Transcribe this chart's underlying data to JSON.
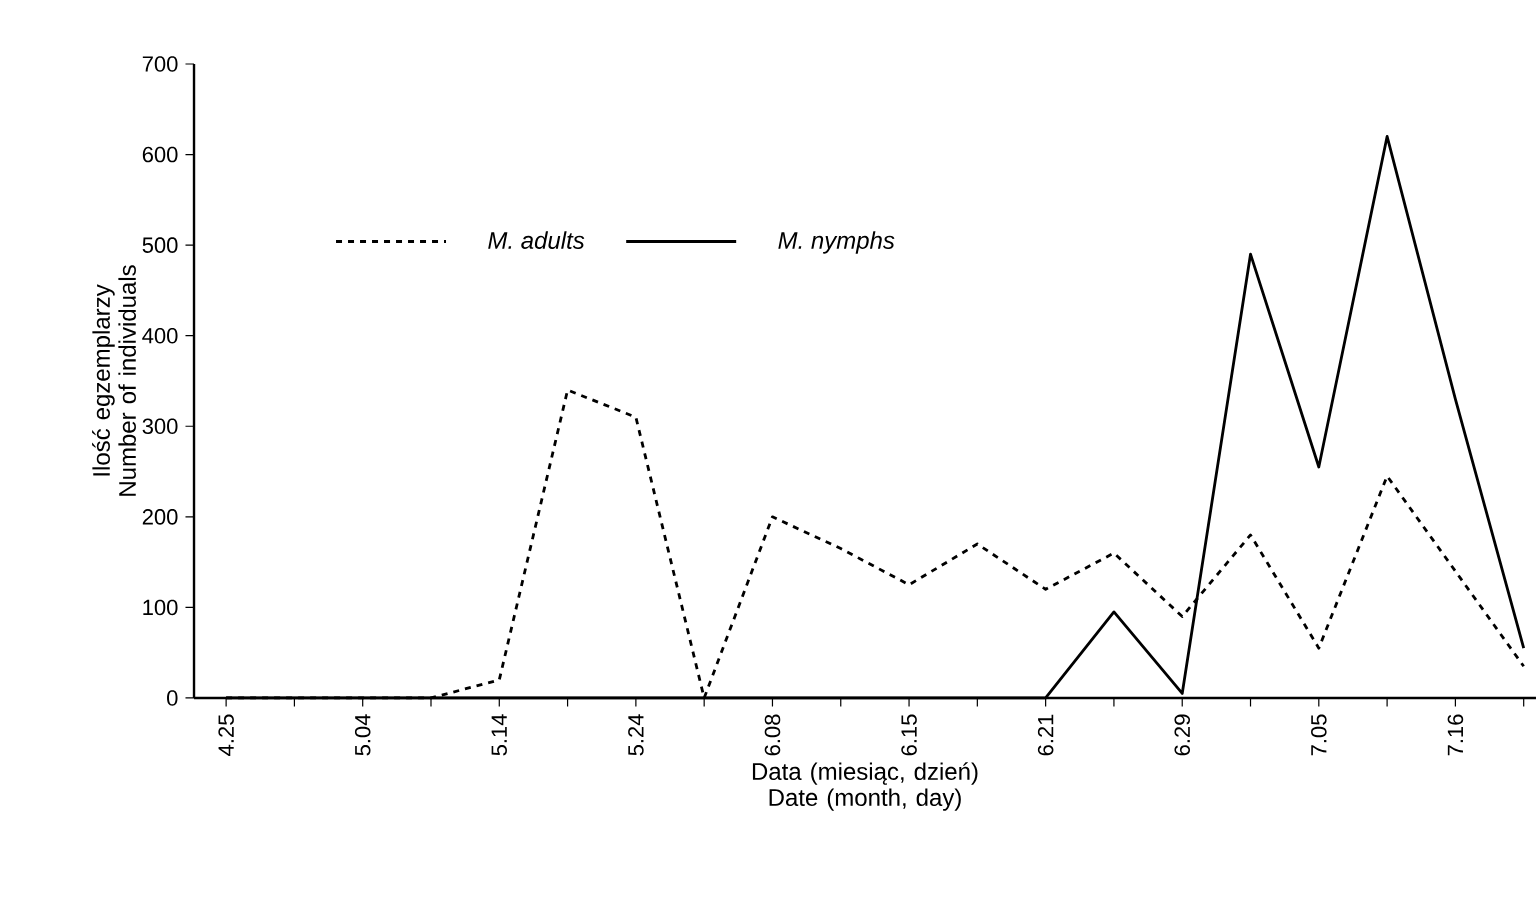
{
  "chart_data": {
    "type": "line",
    "xlabel": "Data (miesiąc, dzień) Date (month, day)",
    "ylabel": "Ilość egzemplarzy Number of individuals",
    "categories": [
      "4.25",
      null,
      "5.04",
      null,
      "5.14",
      null,
      "5.24",
      null,
      "6.08",
      null,
      "6.15",
      null,
      "6.21",
      null,
      "6.29",
      null,
      "7.05",
      null,
      "7.16",
      null
    ],
    "series": [
      {
        "name": "M. adults",
        "color": "#000000",
        "line_style": "dashed",
        "values": [
          0,
          0,
          0,
          0,
          20,
          340,
          310,
          0,
          200,
          165,
          125,
          170,
          120,
          160,
          90,
          180,
          55,
          245,
          140,
          35
        ]
      },
      {
        "name": "M. nymphs",
        "color": "#000000",
        "line_style": "solid",
        "values": [
          0,
          0,
          0,
          0,
          0,
          0,
          0,
          0,
          0,
          0,
          0,
          0,
          0,
          95,
          5,
          490,
          255,
          620,
          330,
          55
        ]
      }
    ],
    "ylim": [
      0,
      700
    ],
    "yticks": [
      0,
      100,
      200,
      300,
      400,
      500,
      600,
      700
    ],
    "legend": "top",
    "grid": false,
    "marker": "none"
  }
}
